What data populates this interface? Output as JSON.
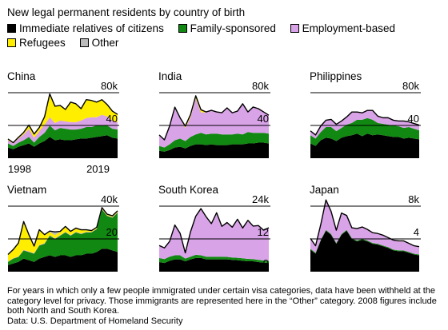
{
  "title": "New legal permanent residents by country of birth",
  "legend": [
    {
      "label": "Immediate relatives of citizens",
      "color": "#000000"
    },
    {
      "label": "Family-sponsored",
      "color": "#118811"
    },
    {
      "label": "Employment-based",
      "color": "#d9a3e8"
    },
    {
      "label": "Refugees",
      "color": "#ffee00"
    },
    {
      "label": "Other",
      "color": "#bbbbbb"
    }
  ],
  "footnote": "For years in which only a few people immigrated under certain visa categories, data have been withheld at the category level for privacy. Those immigrants are represented here in the “Other” category. 2008 figures include both North and South Korea.",
  "source": "Data: U.S. Department of Homeland Security",
  "chart_data": [
    {
      "type": "area",
      "title": "China",
      "x_start": 1998,
      "x_end": 2019,
      "x_tick_labels": [
        "1998",
        "2019"
      ],
      "ylim": [
        0,
        80000
      ],
      "yticks": [
        0,
        40,
        80
      ],
      "ytick_labels": [
        "0",
        "40",
        "80k"
      ],
      "series": [
        {
          "name": "Immediate relatives of citizens",
          "color": "#000000",
          "values": [
            13000,
            11000,
            14000,
            16000,
            18000,
            14000,
            18000,
            21000,
            26000,
            22000,
            23000,
            22000,
            22000,
            23000,
            24000,
            24000,
            25000,
            26000,
            27000,
            28000,
            25000,
            24000
          ]
        },
        {
          "name": "Family-sponsored",
          "color": "#118811",
          "values": [
            5000,
            4000,
            5000,
            6000,
            8000,
            5000,
            8000,
            10000,
            14000,
            12000,
            14000,
            14000,
            13000,
            12000,
            12000,
            14000,
            13000,
            14000,
            13000,
            12000,
            11000,
            11000
          ]
        },
        {
          "name": "Employment-based",
          "color": "#d9a3e8",
          "values": [
            4000,
            3000,
            5000,
            7000,
            10000,
            6000,
            7000,
            10000,
            10000,
            9000,
            9000,
            9000,
            9000,
            9000,
            10000,
            11000,
            12000,
            10000,
            13000,
            11000,
            10000,
            9000
          ]
        },
        {
          "name": "Refugees",
          "color": "#ffee00",
          "values": [
            1000,
            500,
            1000,
            2000,
            4000,
            4000,
            4000,
            9000,
            28000,
            20000,
            18000,
            14000,
            24000,
            22000,
            14000,
            22000,
            20000,
            18000,
            18000,
            14000,
            11000,
            9000
          ]
        },
        {
          "name": "Other",
          "color": "#bbbbbb",
          "values": [
            500,
            500,
            500,
            500,
            500,
            500,
            500,
            500,
            500,
            500,
            500,
            500,
            500,
            500,
            500,
            500,
            500,
            500,
            500,
            500,
            500,
            500
          ]
        }
      ]
    },
    {
      "type": "area",
      "title": "India",
      "x_start": 1998,
      "x_end": 2019,
      "ylim": [
        0,
        80000
      ],
      "yticks": [
        0,
        40,
        80
      ],
      "ytick_labels": [
        "0",
        "40",
        "80k"
      ],
      "series": [
        {
          "name": "Immediate relatives of citizens",
          "color": "#000000",
          "values": [
            9000,
            8000,
            10000,
            13000,
            14000,
            12000,
            15000,
            17000,
            17000,
            16000,
            17000,
            16000,
            16000,
            16000,
            17000,
            17000,
            17000,
            18000,
            18000,
            19000,
            19000,
            18000
          ]
        },
        {
          "name": "Family-sponsored",
          "color": "#118811",
          "values": [
            6000,
            5000,
            7000,
            9000,
            10000,
            9000,
            11000,
            12000,
            14000,
            13000,
            13000,
            14000,
            13000,
            13000,
            12000,
            13000,
            12000,
            14000,
            13000,
            12000,
            12000,
            12000
          ]
        },
        {
          "name": "Employment-based",
          "color": "#d9a3e8",
          "values": [
            13000,
            9000,
            22000,
            40000,
            25000,
            16000,
            24000,
            44000,
            25000,
            27000,
            28000,
            26000,
            26000,
            32000,
            26000,
            27000,
            37000,
            24000,
            31000,
            29000,
            25000,
            22000
          ]
        },
        {
          "name": "Refugees",
          "color": "#ffee00",
          "values": [
            200,
            200,
            200,
            200,
            200,
            2000,
            3000,
            3000,
            3000,
            300,
            300,
            300,
            300,
            300,
            300,
            300,
            300,
            300,
            300,
            300,
            300,
            300
          ]
        },
        {
          "name": "Other",
          "color": "#bbbbbb",
          "values": [
            200,
            200,
            200,
            200,
            200,
            200,
            200,
            200,
            200,
            200,
            200,
            200,
            200,
            200,
            200,
            200,
            200,
            200,
            200,
            200,
            200,
            200
          ]
        }
      ]
    },
    {
      "type": "area",
      "title": "Philippines",
      "x_start": 1998,
      "x_end": 2019,
      "ylim": [
        0,
        80000
      ],
      "yticks": [
        0,
        40,
        80
      ],
      "ytick_labels": [
        "0",
        "40",
        "80k"
      ],
      "series": [
        {
          "name": "Immediate relatives of citizens",
          "color": "#000000",
          "values": [
            18000,
            15000,
            22000,
            25000,
            24000,
            21000,
            25000,
            27000,
            28000,
            30000,
            27000,
            30000,
            28000,
            29000,
            28000,
            27000,
            26000,
            26000,
            24000,
            25000,
            24000,
            23000
          ]
        },
        {
          "name": "Family-sponsored",
          "color": "#118811",
          "values": [
            10000,
            9000,
            10000,
            13000,
            14000,
            12000,
            12000,
            14000,
            15000,
            17000,
            20000,
            19000,
            19000,
            14000,
            14000,
            14000,
            14000,
            13000,
            13000,
            13000,
            12000,
            11000
          ]
        },
        {
          "name": "Employment-based",
          "color": "#d9a3e8",
          "values": [
            5000,
            4000,
            7000,
            8000,
            9000,
            8000,
            8000,
            9000,
            13000,
            9000,
            8000,
            9000,
            11000,
            8000,
            7000,
            8000,
            6000,
            6000,
            8000,
            6000,
            6000,
            6000
          ]
        },
        {
          "name": "Refugees",
          "color": "#ffee00",
          "values": [
            100,
            100,
            100,
            100,
            100,
            100,
            100,
            100,
            100,
            100,
            100,
            100,
            100,
            100,
            100,
            100,
            100,
            100,
            100,
            100,
            100,
            100
          ]
        },
        {
          "name": "Other",
          "color": "#bbbbbb",
          "values": [
            300,
            300,
            300,
            300,
            300,
            300,
            300,
            300,
            300,
            300,
            300,
            300,
            300,
            300,
            300,
            300,
            300,
            300,
            300,
            300,
            300,
            300
          ]
        }
      ]
    },
    {
      "type": "area",
      "title": "Vietnam",
      "x_start": 1998,
      "x_end": 2019,
      "ylim": [
        0,
        40000
      ],
      "yticks": [
        0,
        20,
        40
      ],
      "ytick_labels": [
        "0",
        "20",
        "40k"
      ],
      "series": [
        {
          "name": "Immediate relatives of citizens",
          "color": "#000000",
          "values": [
            4000,
            5000,
            6000,
            8000,
            7000,
            6000,
            8000,
            9000,
            10000,
            9000,
            10000,
            10000,
            9000,
            10000,
            10000,
            11000,
            11000,
            12000,
            14000,
            14000,
            13000,
            12000
          ]
        },
        {
          "name": "Family-sponsored",
          "color": "#118811",
          "values": [
            2000,
            3000,
            3000,
            5000,
            5000,
            5000,
            8000,
            8000,
            12000,
            11000,
            12000,
            14000,
            13000,
            14000,
            13000,
            13000,
            13000,
            14000,
            24000,
            20000,
            20000,
            24000
          ]
        },
        {
          "name": "Employment-based",
          "color": "#d9a3e8",
          "values": [
            200,
            200,
            200,
            300,
            300,
            300,
            300,
            300,
            300,
            300,
            300,
            300,
            300,
            300,
            300,
            300,
            300,
            300,
            300,
            300,
            300,
            300
          ]
        },
        {
          "name": "Refugees",
          "color": "#ffee00",
          "values": [
            4000,
            5000,
            8000,
            17000,
            10000,
            4000,
            9000,
            5000,
            2000,
            2000,
            2000,
            3000,
            2000,
            2000,
            2000,
            1000,
            500,
            500,
            500,
            500,
            500,
            500
          ]
        },
        {
          "name": "Other",
          "color": "#bbbbbb",
          "values": [
            300,
            300,
            300,
            300,
            300,
            300,
            300,
            300,
            500,
            2000,
            300,
            300,
            300,
            300,
            300,
            300,
            300,
            300,
            300,
            300,
            300,
            300
          ]
        }
      ]
    },
    {
      "type": "area",
      "title": "South Korea",
      "x_start": 1998,
      "x_end": 2019,
      "ylim": [
        0,
        24000
      ],
      "yticks": [
        0,
        12,
        24
      ],
      "ytick_labels": [
        "0",
        "12",
        "24k"
      ],
      "series": [
        {
          "name": "Immediate relatives of citizens",
          "color": "#000000",
          "values": [
            3500,
            3200,
            4000,
            4500,
            4500,
            3800,
            4500,
            5000,
            5000,
            4500,
            4500,
            4500,
            4500,
            4500,
            4300,
            4200,
            4000,
            3800,
            3800,
            3500,
            3300,
            3200
          ]
        },
        {
          "name": "Family-sponsored",
          "color": "#118811",
          "values": [
            1500,
            1400,
            1500,
            1500,
            1500,
            1000,
            1000,
            1200,
            1000,
            1000,
            1000,
            1000,
            1000,
            900,
            900,
            900,
            900,
            900,
            800,
            800,
            800,
            800
          ]
        },
        {
          "name": "Employment-based",
          "color": "#d9a3e8",
          "values": [
            4500,
            4000,
            5500,
            11000,
            8000,
            2000,
            9000,
            14000,
            17000,
            14500,
            12000,
            16000,
            11000,
            12500,
            11000,
            14000,
            11000,
            14000,
            12000,
            12500,
            11000,
            12000
          ]
        },
        {
          "name": "Refugees",
          "color": "#ffee00",
          "values": [
            50,
            50,
            50,
            50,
            50,
            50,
            50,
            50,
            50,
            50,
            50,
            50,
            50,
            50,
            50,
            50,
            50,
            50,
            50,
            50,
            50,
            50
          ]
        },
        {
          "name": "Other",
          "color": "#bbbbbb",
          "values": [
            50,
            50,
            50,
            50,
            50,
            50,
            50,
            50,
            50,
            50,
            50,
            50,
            50,
            50,
            50,
            50,
            50,
            50,
            50,
            50,
            50,
            50
          ]
        }
      ]
    },
    {
      "type": "area",
      "title": "Japan",
      "x_start": 1998,
      "x_end": 2019,
      "ylim": [
        0,
        8000
      ],
      "yticks": [
        0,
        4,
        8
      ],
      "ytick_labels": [
        "0",
        "4",
        "8k"
      ],
      "series": [
        {
          "name": "Immediate relatives of citizens",
          "color": "#000000",
          "values": [
            2700,
            2200,
            3800,
            5000,
            4500,
            3400,
            4500,
            5000,
            4000,
            3700,
            3900,
            3700,
            3400,
            3300,
            3100,
            2900,
            2600,
            2500,
            2500,
            2300,
            2100,
            2000
          ]
        },
        {
          "name": "Family-sponsored",
          "color": "#118811",
          "values": [
            100,
            100,
            100,
            100,
            100,
            100,
            100,
            100,
            100,
            100,
            100,
            100,
            100,
            100,
            100,
            100,
            100,
            100,
            100,
            100,
            100,
            100
          ]
        },
        {
          "name": "Employment-based",
          "color": "#d9a3e8",
          "values": [
            1200,
            800,
            1800,
            3600,
            2700,
            1500,
            2500,
            1700,
            1200,
            1400,
            1400,
            1300,
            1200,
            1200,
            1200,
            1100,
            1100,
            1100,
            1100,
            1000,
            900,
            900
          ]
        },
        {
          "name": "Refugees",
          "color": "#ffee00",
          "values": [
            10,
            10,
            10,
            10,
            10,
            10,
            10,
            10,
            10,
            10,
            10,
            10,
            10,
            10,
            10,
            10,
            10,
            10,
            10,
            10,
            10,
            10
          ]
        },
        {
          "name": "Other",
          "color": "#bbbbbb",
          "values": [
            50,
            50,
            50,
            50,
            50,
            50,
            50,
            50,
            50,
            50,
            50,
            50,
            50,
            50,
            50,
            50,
            50,
            50,
            50,
            50,
            50,
            50
          ]
        }
      ]
    }
  ]
}
